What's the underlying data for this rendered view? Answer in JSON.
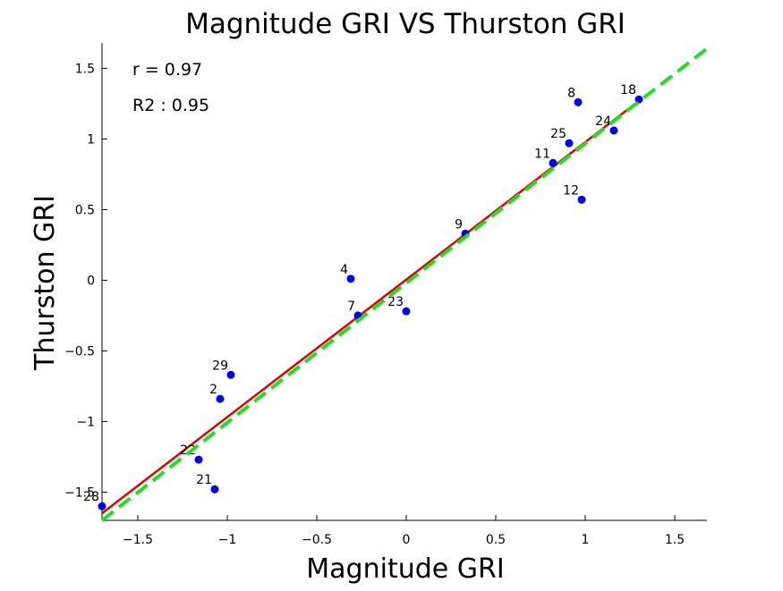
{
  "chart_data": {
    "type": "scatter",
    "title": "Magnitude GRI VS Thurston GRI",
    "xlabel": "Magnitude GRI",
    "ylabel": "Thurston GRI",
    "xlim": [
      -1.7,
      1.68
    ],
    "ylim": [
      -1.7,
      1.68
    ],
    "xticks": [
      -1.5,
      -1,
      -0.5,
      0,
      0.5,
      1,
      1.5
    ],
    "xtick_labels": [
      "−1.5",
      "−1",
      "−0.5",
      "0",
      "0.5",
      "1",
      "1.5"
    ],
    "yticks": [
      -1.5,
      -1,
      -0.5,
      0,
      0.5,
      1,
      1.5
    ],
    "ytick_labels": [
      "−1.5",
      "−1",
      "−0.5",
      "0",
      "0.5",
      "1",
      "1.5"
    ],
    "grid": false,
    "annotations": [
      "r = 0.97",
      "R2 : 0.95"
    ],
    "points": [
      {
        "label": "28",
        "x": -1.7,
        "y": -1.6
      },
      {
        "label": "21",
        "x": -1.07,
        "y": -1.48
      },
      {
        "label": "22",
        "x": -1.16,
        "y": -1.27
      },
      {
        "label": "2",
        "x": -1.04,
        "y": -0.84
      },
      {
        "label": "29",
        "x": -0.98,
        "y": -0.67
      },
      {
        "label": "4",
        "x": -0.31,
        "y": 0.01
      },
      {
        "label": "7",
        "x": -0.27,
        "y": -0.25
      },
      {
        "label": "23",
        "x": 0.0,
        "y": -0.22
      },
      {
        "label": "9",
        "x": 0.33,
        "y": 0.33
      },
      {
        "label": "11",
        "x": 0.82,
        "y": 0.83
      },
      {
        "label": "12",
        "x": 0.98,
        "y": 0.57
      },
      {
        "label": "25",
        "x": 0.91,
        "y": 0.97
      },
      {
        "label": "8",
        "x": 0.96,
        "y": 1.26
      },
      {
        "label": "24",
        "x": 1.16,
        "y": 1.06
      },
      {
        "label": "18",
        "x": 1.3,
        "y": 1.28
      }
    ],
    "fit_line": {
      "x": [
        -1.7,
        1.3
      ],
      "y": [
        -1.65,
        1.27
      ]
    },
    "identity_line": {
      "x": [
        -1.7,
        1.68
      ],
      "y": [
        -1.7,
        1.64
      ]
    },
    "colors": {
      "points": "#0000ee",
      "fit": "#e00000",
      "identity": "#22dd22",
      "axis": "#000000"
    }
  }
}
